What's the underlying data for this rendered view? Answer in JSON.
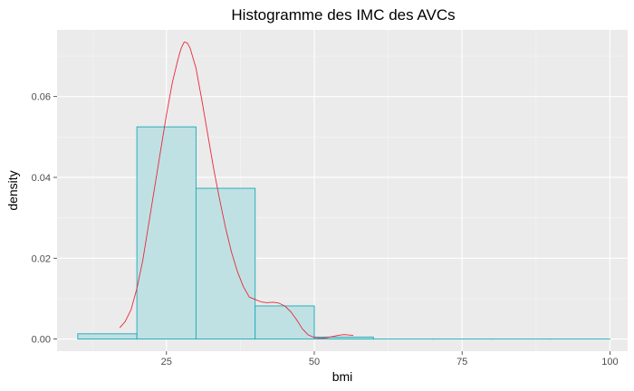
{
  "chart_data": {
    "type": "histogram",
    "title": "Histogramme des IMC des AVCs",
    "xlabel": "bmi",
    "ylabel": "density",
    "xlim": [
      6.5,
      103
    ],
    "ylim": [
      -0.003,
      0.0765
    ],
    "x_ticks": [
      25,
      50,
      75,
      100
    ],
    "x_tick_labels": [
      "25",
      "50",
      "75",
      "100"
    ],
    "y_ticks": [
      0.0,
      0.02,
      0.04,
      0.06
    ],
    "y_tick_labels": [
      "0.00",
      "0.02",
      "0.04",
      "0.06"
    ],
    "grid": true,
    "bins": [
      {
        "x0": 10,
        "x1": 20,
        "density": 0.0013
      },
      {
        "x0": 20,
        "x1": 30,
        "density": 0.0525
      },
      {
        "x0": 30,
        "x1": 40,
        "density": 0.0373
      },
      {
        "x0": 40,
        "x1": 50,
        "density": 0.0082
      },
      {
        "x0": 50,
        "x1": 60,
        "density": 0.0005
      },
      {
        "x0": 60,
        "x1": 70,
        "density": 0.0
      },
      {
        "x0": 70,
        "x1": 80,
        "density": 0.0
      },
      {
        "x0": 80,
        "x1": 90,
        "density": 0.0
      },
      {
        "x0": 90,
        "x1": 100,
        "density": 0.0
      }
    ],
    "density_curve": {
      "x": [
        17.1,
        18,
        19,
        20,
        21,
        22,
        23,
        24,
        25,
        26,
        27,
        27.5,
        28,
        28.5,
        29,
        30,
        31,
        32,
        33,
        34,
        35,
        36,
        37,
        38,
        39,
        40,
        41,
        42,
        43,
        44,
        45,
        46,
        47,
        48,
        49,
        50,
        51,
        52,
        53,
        54,
        55,
        56,
        56.6
      ],
      "y": [
        0.0028,
        0.0043,
        0.0072,
        0.0125,
        0.0195,
        0.0285,
        0.0375,
        0.0465,
        0.0555,
        0.0635,
        0.0695,
        0.072,
        0.0735,
        0.0733,
        0.072,
        0.067,
        0.059,
        0.0505,
        0.042,
        0.0345,
        0.0275,
        0.0215,
        0.0167,
        0.013,
        0.0104,
        0.0098,
        0.0092,
        0.009,
        0.0091,
        0.0089,
        0.0082,
        0.0068,
        0.0048,
        0.0025,
        0.001,
        0.0004,
        0.0002,
        0.0003,
        0.0006,
        0.0009,
        0.0011,
        0.001,
        0.0009
      ]
    },
    "colors": {
      "panel_background": "#ebebeb",
      "grid_major": "#ffffff",
      "grid_minor": "#f5f5f5",
      "bar_fill": "#c0e1e3",
      "bar_stroke": "#1ba8b8",
      "density_line": "#e8283d",
      "tick_mark": "#333333"
    }
  }
}
